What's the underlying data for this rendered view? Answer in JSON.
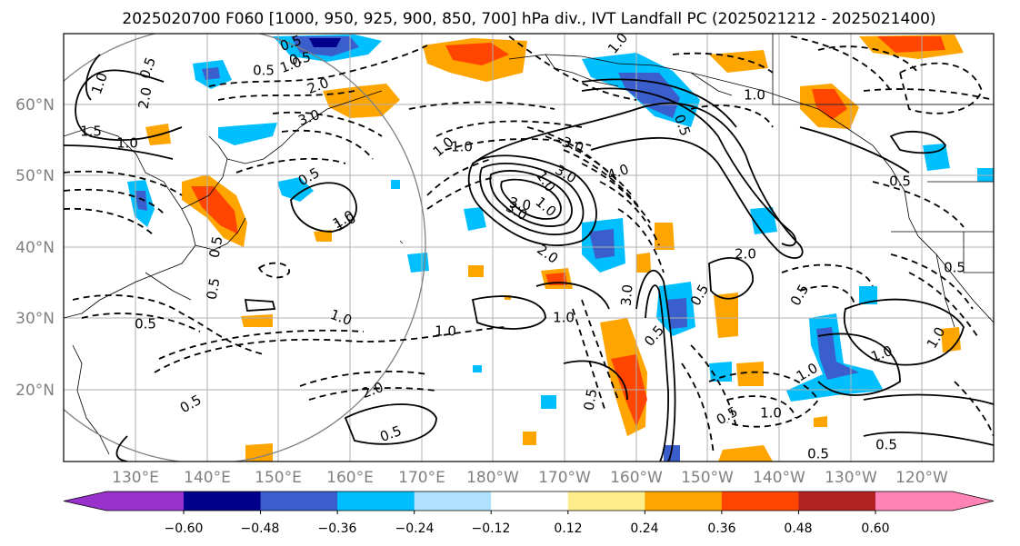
{
  "title": "2025020700 F060 [1000, 950, 925, 900, 850, 700] hPa div., IVT Landfall PC (2025021212 - 2025021400)",
  "map": {
    "lat_ticks": [
      "60°N",
      "50°N",
      "40°N",
      "30°N",
      "20°N"
    ],
    "lon_ticks": [
      "130°E",
      "140°E",
      "150°E",
      "160°E",
      "170°E",
      "180°W",
      "170°W",
      "160°W",
      "150°W",
      "140°W",
      "130°W",
      "120°W"
    ],
    "contour_labels": [
      "0.5",
      "1.0",
      "2.0",
      "1.5",
      "1.0",
      "0.5",
      "1.0",
      "2.0",
      "3.0",
      "0.5",
      "1.0",
      "0.5",
      "0.5",
      "1.0",
      "0.5",
      "1.0",
      "0.5",
      "0.5",
      "1.0",
      "1.0",
      "3.0",
      "3.0",
      "2.0",
      "4.0",
      "3.0",
      "3.0",
      "0.5",
      "1.0",
      "2.0",
      "0.5",
      "1.0",
      "1.0",
      "1.0",
      "0.5",
      "0.5",
      "0.5",
      "0.5",
      "1.0",
      "1.0",
      "1.0",
      "2.0",
      "0.5",
      "0.5",
      "0.5",
      "1.0",
      "0.5",
      "0.5",
      "1.0",
      "3.0",
      "1.0",
      "0.5"
    ]
  },
  "colorbar": {
    "ticks": [
      "−0.60",
      "−0.48",
      "−0.36",
      "−0.24",
      "−0.12",
      "0.12",
      "0.24",
      "0.36",
      "0.48",
      "0.60"
    ],
    "colors": [
      "#9932cc",
      "#00008b",
      "#3a5fcd",
      "#00bfff",
      "#b0e2ff",
      "#ffffff",
      "#ffec8b",
      "#ffa500",
      "#ff4500",
      "#b22222",
      "#ff83b5"
    ]
  },
  "legend_colors": {
    "neg_strong": "#3a5fcd",
    "neg": "#00bfff",
    "neg_weak": "#b0e2ff",
    "pos_weak": "#ffec8b",
    "pos": "#ffa500",
    "pos_strong": "#ff4500",
    "pos_max": "#b22222"
  }
}
